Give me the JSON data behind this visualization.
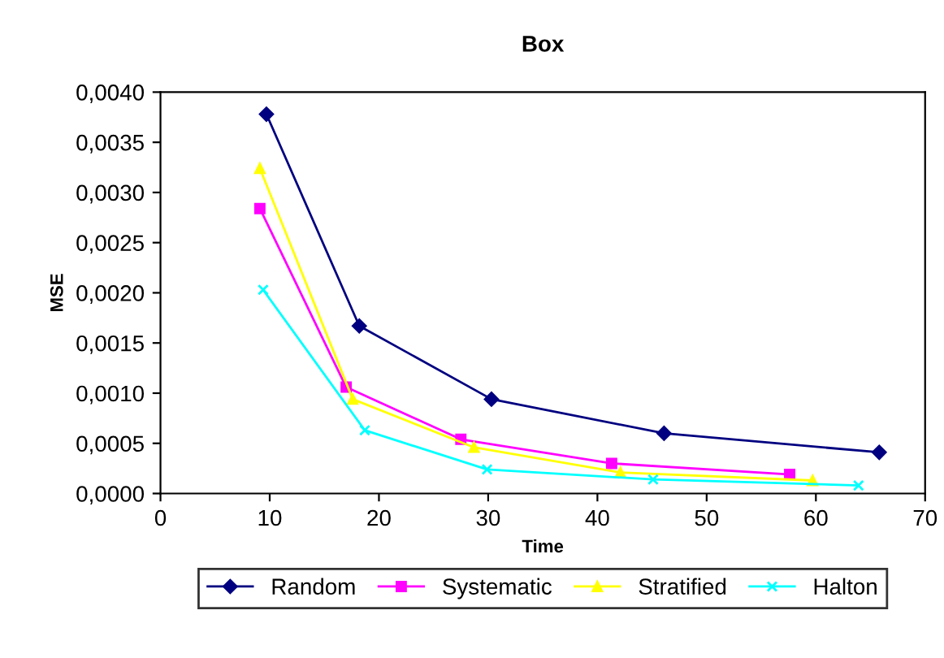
{
  "chart_data": {
    "type": "line",
    "title": "Box",
    "xlabel": "Time",
    "ylabel": "MSE",
    "xlim": [
      0,
      70
    ],
    "xticks": [
      0,
      10,
      20,
      30,
      40,
      50,
      60,
      70
    ],
    "ylim": [
      0,
      0.004
    ],
    "yticks": [
      {
        "value": 0,
        "label": "0,0000"
      },
      {
        "value": 0.0005,
        "label": "0,0005"
      },
      {
        "value": 0.001,
        "label": "0,0010"
      },
      {
        "value": 0.0015,
        "label": "0,0015"
      },
      {
        "value": 0.002,
        "label": "0,0020"
      },
      {
        "value": 0.0025,
        "label": "0,0025"
      },
      {
        "value": 0.003,
        "label": "0,0030"
      },
      {
        "value": 0.0035,
        "label": "0,0035"
      },
      {
        "value": 0.004,
        "label": "0,0040"
      }
    ],
    "grid": false,
    "legend": "bottom",
    "line_style": "solid",
    "series": [
      {
        "name": "Random",
        "color": "#000080",
        "marker": "diamond",
        "x": [
          9.7,
          18.2,
          30.3,
          46.1,
          65.8
        ],
        "values": [
          0.00378,
          0.00167,
          0.00094,
          0.0006,
          0.00041
        ]
      },
      {
        "name": "Systematic",
        "color": "#ff00ff",
        "marker": "square",
        "x": [
          9.1,
          17.0,
          27.5,
          41.3,
          57.6
        ],
        "values": [
          0.00284,
          0.00106,
          0.00054,
          0.0003,
          0.00019
        ]
      },
      {
        "name": "Stratified",
        "color": "#ffff00",
        "marker": "triangle",
        "x": [
          9.1,
          17.6,
          28.7,
          42.1,
          59.7
        ],
        "values": [
          0.00324,
          0.00094,
          0.00046,
          0.00021,
          0.00013
        ]
      },
      {
        "name": "Halton",
        "color": "#00ffff",
        "marker": "cross",
        "x": [
          9.4,
          18.7,
          29.9,
          45.1,
          63.9
        ],
        "values": [
          0.00203,
          0.00063,
          0.00024,
          0.00014,
          8e-05
        ]
      }
    ]
  }
}
